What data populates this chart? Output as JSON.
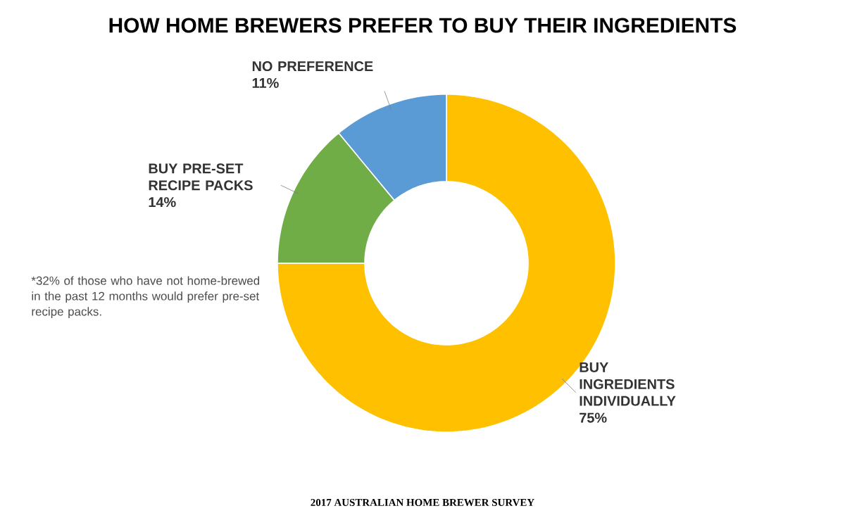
{
  "chart_data": {
    "type": "donut",
    "title": "HOW HOME BREWERS PREFER TO BUY THEIR INGREDIENTS",
    "categories": [
      "BUY INGREDIENTS INDIVIDUALLY",
      "BUY PRE-SET RECIPE PACKS",
      "NO PREFERENCE"
    ],
    "values": [
      75,
      14,
      11
    ],
    "colors": [
      "#ffc000",
      "#70ad47",
      "#5b9bd5"
    ],
    "value_labels": [
      "75%",
      "14%",
      "11%"
    ],
    "annotations": [
      "*32% of those who have not home-brewed in the past 12 months would prefer pre-set recipe packs.",
      "2017 AUSTRALIAN HOME BREWER SURVEY"
    ]
  }
}
